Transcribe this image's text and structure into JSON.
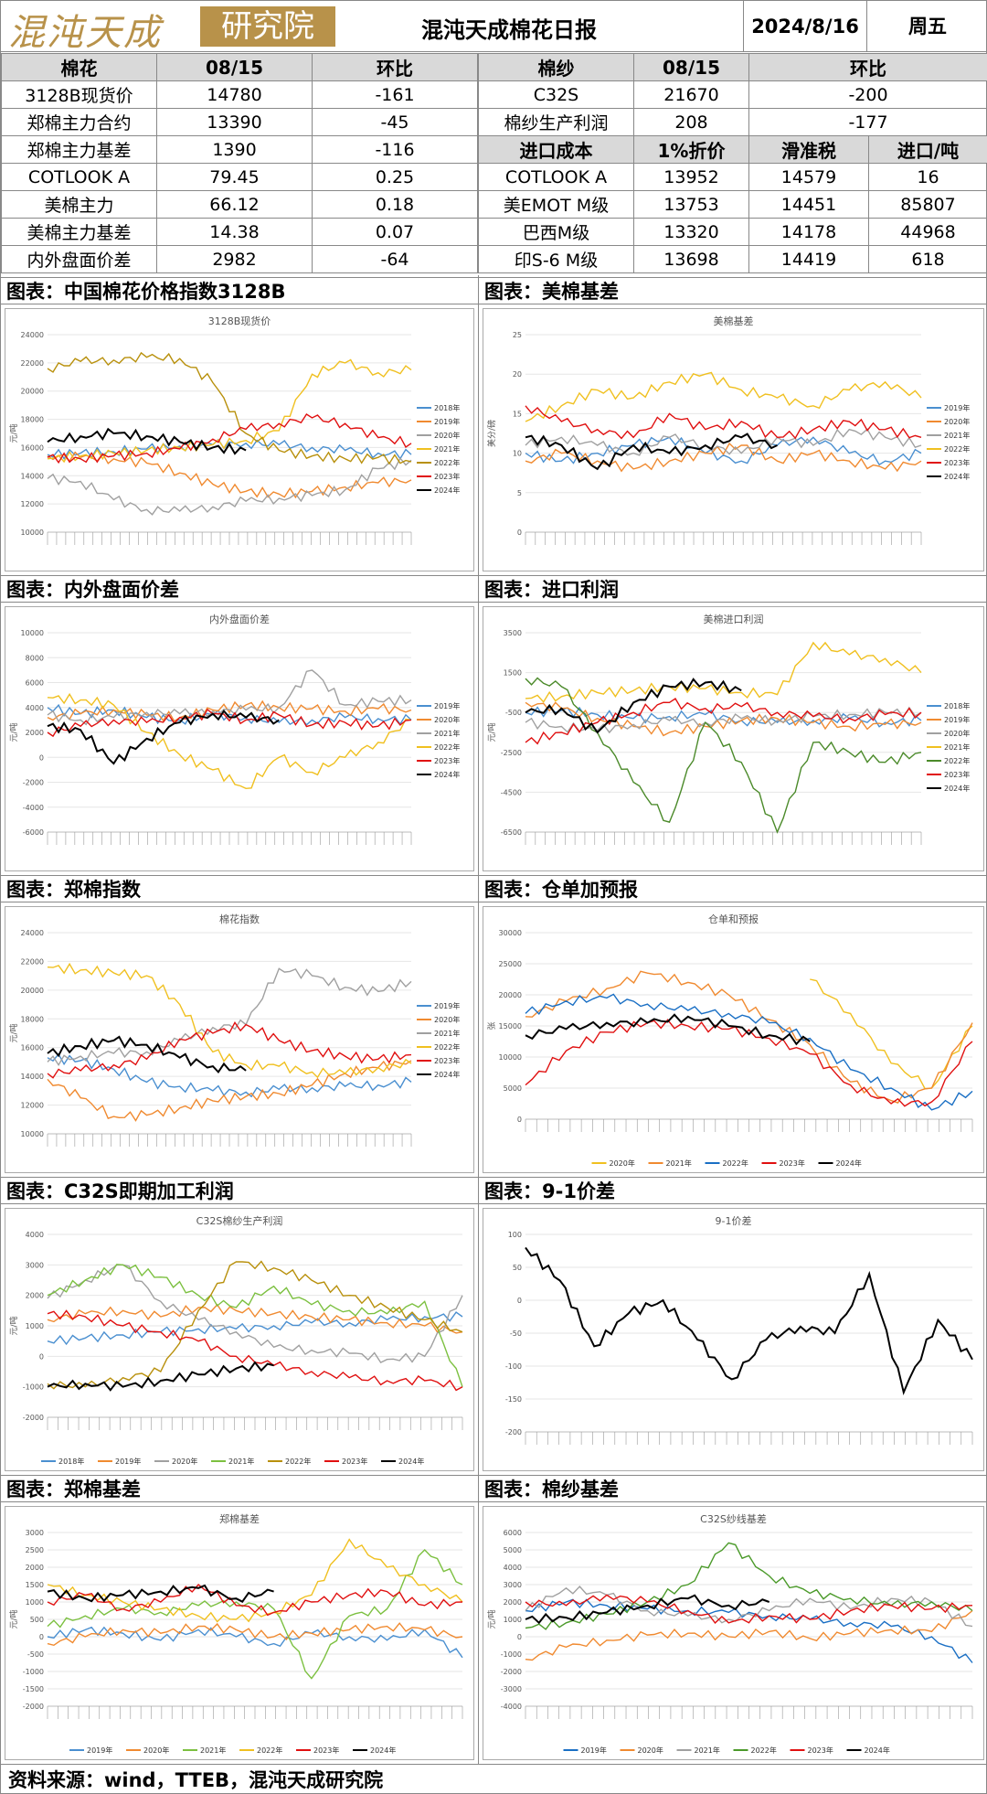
{
  "header": {
    "logo_text": "混沌天成",
    "logo_box_text": "研究院",
    "title": "混沌天成棉花日报",
    "date": "2024/8/16",
    "weekday": "周五"
  },
  "table_left": {
    "headers": [
      "棉花",
      "08/15",
      "环比"
    ],
    "rows": [
      [
        "3128B现货价",
        "14780",
        "-161"
      ],
      [
        "郑棉主力合约",
        "13390",
        "-45"
      ],
      [
        "郑棉主力基差",
        "1390",
        "-116"
      ],
      [
        "COTLOOK A",
        "79.45",
        "0.25"
      ],
      [
        "美棉主力",
        "66.12",
        "0.18"
      ],
      [
        "美棉主力基差",
        "14.38",
        "0.07"
      ],
      [
        "内外盘面价差",
        "2982",
        "-64"
      ]
    ]
  },
  "table_right": {
    "headers": [
      "棉纱",
      "08/15",
      "环比"
    ],
    "top_rows": [
      [
        "C32S",
        "21670",
        "-200"
      ],
      [
        "棉纱生产利润",
        "208",
        "-177"
      ]
    ],
    "import_headers": [
      "进口成本",
      "1%折价",
      "滑准税",
      "进口/吨"
    ],
    "import_rows": [
      [
        "COTLOOK A",
        "13952",
        "14579",
        "16"
      ],
      [
        "美EMOT M级",
        "13753",
        "14451",
        "85807"
      ],
      [
        "巴西M级",
        "13320",
        "14178",
        "44968"
      ],
      [
        "印S-6 M级",
        "13698",
        "14419",
        "618"
      ]
    ]
  },
  "section_titles": {
    "c1": "图表：中国棉花价格指数3128B",
    "c2": "图表：美棉基差",
    "c3": "图表：内外盘面价差",
    "c4": "图表：进口利润",
    "c5": "图表：郑棉指数",
    "c6": "图表：仓单加预报",
    "c7": "图表：C32S即期加工利润",
    "c8": "图表：9-1价差",
    "c9": "图表：郑棉基差",
    "c10": "图表：棉纱基差"
  },
  "footer": "资料来源：wind，TTEB，混沌天成研究院",
  "charts": [
    {
      "id": "c1",
      "title": "3128B现货价",
      "ylabel": "元/吨",
      "ylim": [
        10000,
        24000
      ],
      "yticks": [
        10000,
        12000,
        14000,
        16000,
        18000,
        20000,
        22000,
        24000
      ],
      "legend": [
        "2018年",
        "2019年",
        "2020年",
        "2021年",
        "2022年",
        "2023年",
        "2024年"
      ],
      "legend_pos": "right",
      "colors": [
        "#4a8fd0",
        "#f08a30",
        "#a0a0a0",
        "#f0c020",
        "#b8900c",
        "#e01010",
        "#000000"
      ],
      "series": [
        [
          15500,
          15600,
          15700,
          15900,
          16100,
          16200,
          16300,
          16200,
          16000,
          15800,
          15600,
          15500
        ],
        [
          15400,
          15300,
          15200,
          14900,
          14200,
          13400,
          12900,
          12700,
          12900,
          13200,
          13500,
          13700
        ],
        [
          13800,
          13600,
          12300,
          11600,
          11500,
          11800,
          12200,
          12400,
          12600,
          13000,
          14500,
          15100
        ],
        [
          15200,
          15400,
          15600,
          15800,
          16000,
          16200,
          16500,
          17200,
          21200,
          22000,
          21300,
          21500
        ],
        [
          21600,
          22100,
          22200,
          22400,
          22300,
          20600,
          17000,
          15800,
          15400,
          15200,
          15300,
          15000
        ],
        [
          15300,
          15200,
          15400,
          15600,
          15900,
          16600,
          17300,
          17700,
          18100,
          17700,
          16700,
          16300
        ],
        [
          16400,
          16800,
          17000,
          16800,
          16400,
          16000,
          15800,
          null,
          null,
          null,
          null,
          null
        ]
      ]
    },
    {
      "id": "c2",
      "title": "美棉基差",
      "ylabel": "美分/磅",
      "ylim": [
        0,
        25
      ],
      "yticks": [
        0,
        5,
        10,
        15,
        20,
        25
      ],
      "legend": [
        "2019年",
        "2020年",
        "2021年",
        "2022年",
        "2023年",
        "2024年"
      ],
      "legend_pos": "right",
      "colors": [
        "#4a8fd0",
        "#f08a30",
        "#a0a0a0",
        "#f0c020",
        "#e01010",
        "#000000"
      ],
      "series": [
        [
          10,
          9,
          10,
          11,
          12,
          10,
          9,
          11,
          12,
          10,
          9,
          10
        ],
        [
          9,
          10,
          9,
          8,
          9,
          10,
          11,
          9,
          10,
          9,
          8,
          9
        ],
        [
          11,
          12,
          11,
          10,
          12,
          11,
          10,
          12,
          11,
          13,
          12,
          11
        ],
        [
          14,
          16,
          18,
          17,
          19,
          20,
          18,
          17,
          16,
          18,
          19,
          17
        ],
        [
          16,
          14,
          13,
          12,
          15,
          13,
          14,
          12,
          13,
          14,
          13,
          12
        ],
        [
          12,
          11,
          8,
          11,
          10,
          11,
          12,
          11,
          null,
          null,
          null,
          null
        ]
      ]
    },
    {
      "id": "c3",
      "title": "内外盘面价差",
      "ylabel": "元/吨",
      "ylim": [
        -6000,
        10000
      ],
      "yticks": [
        -6000,
        -4000,
        -2000,
        0,
        2000,
        4000,
        6000,
        8000,
        10000
      ],
      "legend": [
        "2019年",
        "2020年",
        "2021年",
        "2022年",
        "2023年",
        "2024年"
      ],
      "legend_pos": "right",
      "colors": [
        "#4a8fd0",
        "#f08a30",
        "#a0a0a0",
        "#f0c020",
        "#e01010",
        "#000000"
      ],
      "series": [
        [
          4000,
          3500,
          3800,
          3200,
          3000,
          3400,
          3200,
          2800,
          3000,
          3200,
          3100,
          3000
        ],
        [
          3200,
          3500,
          3800,
          3400,
          3200,
          3800,
          4200,
          4000,
          3900,
          3700,
          3900,
          3800
        ],
        [
          3400,
          3000,
          3200,
          3600,
          3500,
          3700,
          3800,
          4000,
          7000,
          4200,
          4500,
          4600
        ],
        [
          4800,
          4600,
          4200,
          2000,
          200,
          -1000,
          -2500,
          0,
          -1200,
          0,
          1200,
          3000
        ],
        [
          2000,
          2500,
          3000,
          2800,
          3200,
          3500,
          3000,
          3400,
          2600,
          2800,
          2500,
          3000
        ],
        [
          2500,
          2200,
          -500,
          1500,
          2800,
          3500,
          3200,
          3000,
          null,
          null,
          null,
          null
        ]
      ]
    },
    {
      "id": "c4",
      "title": "美棉进口利润",
      "ylabel": "元/吨",
      "ylim": [
        -6500,
        3500
      ],
      "yticks": [
        -6500,
        -4500,
        -2500,
        -500,
        1500,
        3500
      ],
      "legend": [
        "2018年",
        "2019年",
        "2020年",
        "2021年",
        "2022年",
        "2023年",
        "2024年"
      ],
      "legend_pos": "right",
      "colors": [
        "#4a8fd0",
        "#f08a30",
        "#a0a0a0",
        "#f0c020",
        "#4b8a2a",
        "#e01010",
        "#000000"
      ],
      "series": [
        [
          -500,
          -400,
          -600,
          -800,
          -700,
          -600,
          -900,
          -1000,
          -900,
          -800,
          -1000,
          -900
        ],
        [
          0,
          -300,
          -800,
          -1200,
          -1500,
          -1200,
          -900,
          -800,
          -1000,
          -1200,
          -1100,
          -1000
        ],
        [
          -1000,
          -1200,
          -1400,
          -1100,
          -900,
          -1000,
          -800,
          -900,
          -700,
          -600,
          -500,
          -500
        ],
        [
          200,
          300,
          500,
          600,
          800,
          700,
          500,
          400,
          3000,
          2400,
          2200,
          1500
        ],
        [
          1200,
          800,
          -1500,
          -4000,
          -6000,
          -1000,
          -3000,
          -6500,
          -2000,
          -2500,
          -3000,
          -2500
        ],
        [
          -2000,
          -1500,
          -1000,
          -500,
          0,
          -300,
          -200,
          -500,
          -700,
          -800,
          -600,
          -500
        ],
        [
          -500,
          -300,
          -1500,
          0,
          800,
          1000,
          600,
          null,
          null,
          null,
          null,
          null
        ]
      ]
    },
    {
      "id": "c5",
      "title": "棉花指数",
      "ylabel": "元/吨",
      "ylim": [
        10000,
        24000
      ],
      "yticks": [
        10000,
        12000,
        14000,
        16000,
        18000,
        20000,
        22000,
        24000
      ],
      "legend": [
        "2019年",
        "2020年",
        "2021年",
        "2022年",
        "2023年",
        "2024年"
      ],
      "legend_pos": "right",
      "colors": [
        "#4a8fd0",
        "#f08a30",
        "#a0a0a0",
        "#f0c020",
        "#e01010",
        "#000000"
      ],
      "series": [
        [
          15300,
          15100,
          14500,
          13600,
          13300,
          13000,
          12900,
          13100,
          13200,
          13300,
          13400,
          13600
        ],
        [
          13800,
          12500,
          11200,
          11300,
          11800,
          12300,
          12600,
          12800,
          13400,
          14200,
          14600,
          15100
        ],
        [
          15000,
          15400,
          15600,
          15700,
          16500,
          17400,
          17600,
          21500,
          21000,
          20200,
          19900,
          20600
        ],
        [
          21600,
          21400,
          21200,
          21000,
          19000,
          15700,
          14800,
          14700,
          14300,
          14200,
          14600,
          14900
        ],
        [
          14200,
          14400,
          14800,
          15200,
          16600,
          17000,
          17600,
          16500,
          15800,
          15400,
          15200,
          15500
        ],
        [
          15600,
          16100,
          16500,
          16200,
          15300,
          14700,
          14400,
          null,
          null,
          null,
          null,
          null
        ]
      ]
    },
    {
      "id": "c6",
      "title": "仓单和预报",
      "ylabel": "张",
      "ylim": [
        0,
        30000
      ],
      "yticks": [
        0,
        5000,
        10000,
        15000,
        20000,
        25000,
        30000
      ],
      "legend": [
        "2020年",
        "2021年",
        "2022年",
        "2023年",
        "2024年"
      ],
      "legend_pos": "bottom",
      "colors": [
        "#f0c020",
        "#f08a30",
        "#1a6fc4",
        "#e01010",
        "#000000"
      ],
      "series": [
        [
          null,
          null,
          null,
          null,
          null,
          null,
          null,
          22500,
          17000,
          9000,
          5000,
          15000
        ],
        [
          16500,
          19000,
          21000,
          23500,
          22000,
          20000,
          16000,
          12000,
          6000,
          3000,
          5000,
          15500
        ],
        [
          17000,
          19000,
          19500,
          18500,
          17500,
          17000,
          15500,
          13000,
          8000,
          5000,
          1500,
          4500
        ],
        [
          5500,
          11000,
          14000,
          15500,
          15000,
          14500,
          13000,
          10500,
          5500,
          2500,
          2800,
          12500
        ],
        [
          13500,
          14500,
          15500,
          15500,
          16500,
          15000,
          13500,
          12500,
          null,
          null,
          null,
          null
        ]
      ]
    },
    {
      "id": "c7",
      "title": "C32S棉纱生产利润",
      "ylabel": "元/吨",
      "ylim": [
        -2000,
        4000
      ],
      "yticks": [
        -2000,
        -1000,
        0,
        1000,
        2000,
        3000,
        4000
      ],
      "legend": [
        "2018年",
        "2019年",
        "2020年",
        "2021年",
        "2022年",
        "2023年",
        "2024年"
      ],
      "legend_pos": "bottom",
      "colors": [
        "#4a8fd0",
        "#f08a30",
        "#a0a0a0",
        "#7cc040",
        "#b8900c",
        "#e01010",
        "#000000"
      ],
      "series": [
        [
          500,
          600,
          700,
          800,
          900,
          900,
          1000,
          1100,
          1100,
          1200,
          1300,
          1300
        ],
        [
          1200,
          1400,
          1500,
          1300,
          1600,
          1500,
          1400,
          1300,
          1200,
          1100,
          1000,
          800
        ],
        [
          1900,
          2500,
          3000,
          1800,
          1200,
          800,
          300,
          200,
          100,
          -100,
          0,
          2000
        ],
        [
          2000,
          2500,
          3000,
          2600,
          2000,
          1600,
          2300,
          1700,
          1500,
          1400,
          1800,
          -1000
        ],
        [
          -900,
          -1000,
          -700,
          -500,
          1500,
          3100,
          2900,
          2500,
          2000,
          1600,
          1200,
          800
        ],
        [
          1400,
          1300,
          1000,
          800,
          500,
          0,
          -300,
          -500,
          -700,
          -800,
          -800,
          -1000
        ],
        [
          -1000,
          -900,
          -1000,
          -800,
          -600,
          -400,
          -300,
          null,
          null,
          null,
          null,
          null
        ]
      ]
    },
    {
      "id": "c8",
      "title": "9-1价差",
      "ylabel": "",
      "ylim": [
        -200,
        100
      ],
      "yticks": [
        -200,
        -150,
        -100,
        -50,
        0,
        50,
        100
      ],
      "legend": [],
      "legend_pos": "none",
      "colors": [
        "#000000"
      ],
      "series": [
        [
          80,
          30,
          -70,
          -20,
          0,
          -60,
          -120,
          -60,
          -40,
          -50,
          40,
          -140,
          -30,
          -90
        ]
      ]
    },
    {
      "id": "c9",
      "title": "郑棉基差",
      "ylabel": "元/吨",
      "ylim": [
        -2000,
        3000
      ],
      "yticks": [
        -2000,
        -1500,
        -1000,
        -500,
        0,
        500,
        1000,
        1500,
        2000,
        2500,
        3000
      ],
      "legend": [
        "2019年",
        "2020年",
        "2021年",
        "2022年",
        "2023年",
        "2024年"
      ],
      "legend_pos": "bottom",
      "colors": [
        "#4a8fd0",
        "#f08a30",
        "#7cc040",
        "#f0c020",
        "#e01010",
        "#000000"
      ],
      "series": [
        [
          0,
          200,
          100,
          -100,
          200,
          0,
          -200,
          100,
          0,
          -100,
          200,
          -600
        ],
        [
          -200,
          0,
          200,
          100,
          300,
          200,
          0,
          100,
          200,
          300,
          200,
          0
        ],
        [
          300,
          600,
          800,
          700,
          900,
          1000,
          800,
          -1200,
          600,
          800,
          2500,
          1500
        ],
        [
          1500,
          1200,
          1000,
          800,
          600,
          500,
          700,
          1200,
          2800,
          2000,
          1500,
          1000
        ],
        [
          1000,
          1200,
          800,
          1000,
          1500,
          900,
          700,
          1000,
          1200,
          1300,
          900,
          1000
        ],
        [
          1300,
          1100,
          1200,
          1300,
          1400,
          1100,
          1300,
          null,
          null,
          null,
          null,
          null
        ]
      ]
    },
    {
      "id": "c10",
      "title": "C32S纱线基差",
      "ylabel": "元/吨",
      "ylim": [
        -4000,
        6000
      ],
      "yticks": [
        -4000,
        -3000,
        -2000,
        -1000,
        0,
        1000,
        2000,
        3000,
        4000,
        5000,
        6000
      ],
      "legend": [
        "2019年",
        "2020年",
        "2021年",
        "2022年",
        "2023年",
        "2024年"
      ],
      "legend_pos": "bottom",
      "colors": [
        "#1a6fc4",
        "#f08a30",
        "#a0a0a0",
        "#4b9a2a",
        "#e01010",
        "#000000"
      ],
      "series": [
        [
          1500,
          2000,
          1800,
          1600,
          1500,
          1400,
          1200,
          1000,
          800,
          600,
          0,
          -1500
        ],
        [
          -1300,
          -600,
          -200,
          100,
          200,
          0,
          300,
          -100,
          200,
          400,
          300,
          1500
        ],
        [
          1500,
          2800,
          2400,
          1500,
          1200,
          1000,
          1500,
          2200,
          1600,
          2200,
          2000,
          600
        ],
        [
          500,
          800,
          1300,
          2000,
          3000,
          5400,
          3500,
          2500,
          2200,
          1800,
          2000,
          1500
        ],
        [
          2000,
          1800,
          2400,
          2000,
          1500,
          800,
          1200,
          1000,
          1500,
          1800,
          1600,
          1800
        ],
        [
          1000,
          1100,
          1400,
          1800,
          2200,
          1800,
          2000,
          null,
          null,
          null,
          null,
          null
        ]
      ]
    }
  ]
}
